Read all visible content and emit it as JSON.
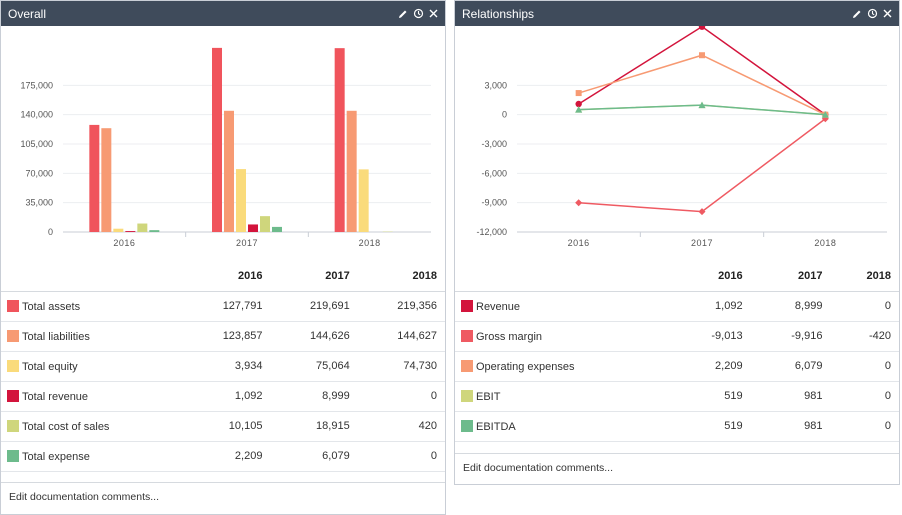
{
  "overall": {
    "title": "Overall",
    "years": [
      "2016",
      "2017",
      "2018"
    ],
    "rows": [
      {
        "label": "Total assets",
        "color": "#f0545c",
        "values": [
          "127,791",
          "219,691",
          "219,356"
        ]
      },
      {
        "label": "Total liabilities",
        "color": "#f79a73",
        "values": [
          "123,857",
          "144,626",
          "144,627"
        ]
      },
      {
        "label": "Total equity",
        "color": "#fadb7b",
        "values": [
          "3,934",
          "75,064",
          "74,730"
        ]
      },
      {
        "label": "Total revenue",
        "color": "#d3143c",
        "values": [
          "1,092",
          "8,999",
          "0"
        ]
      },
      {
        "label": "Total cost of sales",
        "color": "#cfd67c",
        "values": [
          "10,105",
          "18,915",
          "420"
        ]
      },
      {
        "label": "Total expense",
        "color": "#6dbb8c",
        "values": [
          "2,209",
          "6,079",
          "0"
        ]
      }
    ],
    "doc_link": "Edit documentation comments..."
  },
  "relationships": {
    "title": "Relationships",
    "years": [
      "2016",
      "2017",
      "2018"
    ],
    "rows": [
      {
        "label": "Revenue",
        "color": "#d3143c",
        "values": [
          "1,092",
          "8,999",
          "0"
        ]
      },
      {
        "label": "Gross margin",
        "color": "#ef5a62",
        "values": [
          "-9,013",
          "-9,916",
          "-420"
        ]
      },
      {
        "label": "Operating expenses",
        "color": "#f79a73",
        "values": [
          "2,209",
          "6,079",
          "0"
        ]
      },
      {
        "label": "EBIT",
        "color": "#cfd67c",
        "values": [
          "519",
          "981",
          "0"
        ]
      },
      {
        "label": "EBITDA",
        "color": "#6dbb8c",
        "values": [
          "519",
          "981",
          "0"
        ]
      }
    ],
    "doc_link": "Edit documentation comments..."
  },
  "icons": [
    "pencil-icon",
    "history-icon",
    "close-icon"
  ],
  "chart_data": [
    {
      "type": "bar",
      "categories": [
        "2016",
        "2017",
        "2018"
      ],
      "yticks": [
        "0",
        "35,000",
        "70,000",
        "105,000",
        "140,000",
        "175,000"
      ],
      "ylim": [
        0,
        210000
      ],
      "series": [
        {
          "name": "Total assets",
          "color": "#f0545c",
          "values": [
            127791,
            219691,
            219356
          ]
        },
        {
          "name": "Total liabilities",
          "color": "#f79a73",
          "values": [
            123857,
            144626,
            144627
          ]
        },
        {
          "name": "Total equity",
          "color": "#fadb7b",
          "values": [
            3934,
            75064,
            74730
          ]
        },
        {
          "name": "Total revenue",
          "color": "#d3143c",
          "values": [
            1092,
            8999,
            0
          ]
        },
        {
          "name": "Total cost of sales",
          "color": "#cfd67c",
          "values": [
            10105,
            18915,
            420
          ]
        },
        {
          "name": "Total expense",
          "color": "#6dbb8c",
          "values": [
            2209,
            6079,
            0
          ]
        }
      ]
    },
    {
      "type": "line",
      "categories": [
        "2016",
        "2017",
        "2018"
      ],
      "yticks": [
        "-12,000",
        "-9,000",
        "-6,000",
        "-3,000",
        "0",
        "3,000"
      ],
      "ylim": [
        -12000,
        6000
      ],
      "series": [
        {
          "name": "Revenue",
          "color": "#d3143c",
          "marker": "circle",
          "values": [
            1092,
            8999,
            0
          ]
        },
        {
          "name": "Gross margin",
          "color": "#ef5a62",
          "marker": "diamond",
          "values": [
            -9013,
            -9916,
            -420
          ]
        },
        {
          "name": "Operating expenses",
          "color": "#f79a73",
          "marker": "square",
          "values": [
            2209,
            6079,
            0
          ]
        },
        {
          "name": "EBIT",
          "color": "#cfd67c",
          "marker": "triangle",
          "values": [
            519,
            981,
            0
          ]
        },
        {
          "name": "EBITDA",
          "color": "#6dbb8c",
          "marker": "triangle",
          "values": [
            519,
            981,
            0
          ]
        }
      ]
    }
  ]
}
